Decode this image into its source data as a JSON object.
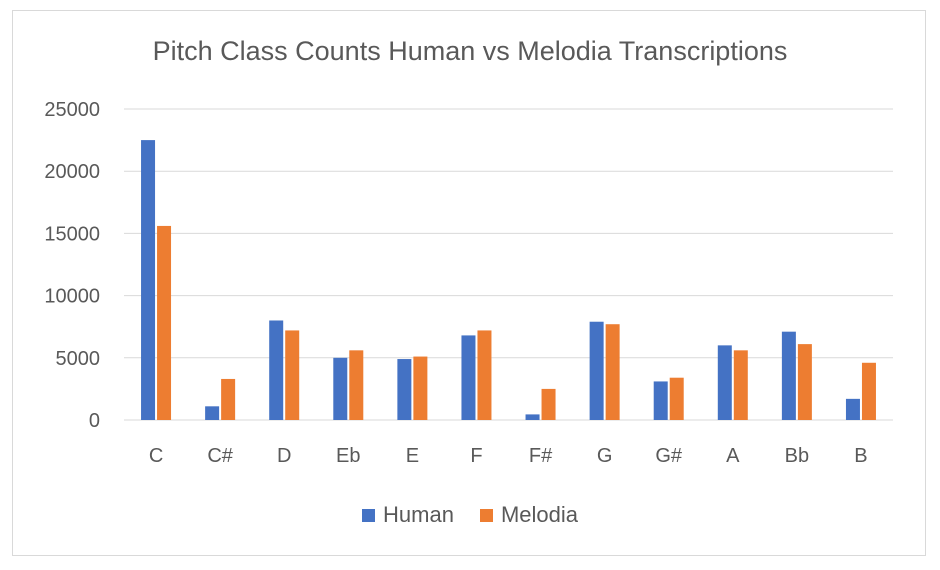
{
  "chart_data": {
    "type": "bar",
    "title": "Pitch Class Counts Human vs Melodia Transcriptions",
    "xlabel": "",
    "ylabel": "",
    "categories": [
      "C",
      "C#",
      "D",
      "Eb",
      "E",
      "F",
      "F#",
      "G",
      "G#",
      "A",
      "Bb",
      "B"
    ],
    "series": [
      {
        "name": "Human",
        "color": "#4472c4",
        "values": [
          22500,
          1100,
          8000,
          5000,
          4900,
          6800,
          450,
          7900,
          3100,
          6000,
          7100,
          1700
        ]
      },
      {
        "name": "Melodia",
        "color": "#ed7d31",
        "values": [
          15600,
          3300,
          7200,
          5600,
          5100,
          7200,
          2500,
          7700,
          3400,
          5600,
          6100,
          4600
        ]
      }
    ],
    "ylim": [
      0,
      25000
    ],
    "yticks": [
      0,
      5000,
      10000,
      15000,
      20000,
      25000
    ],
    "grid": true,
    "legend_position": "bottom"
  }
}
